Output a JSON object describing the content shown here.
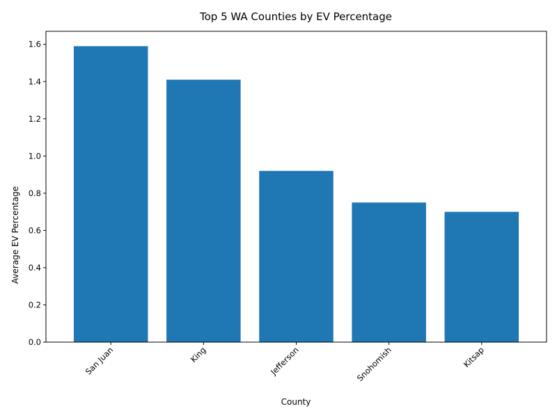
{
  "chart_data": {
    "type": "bar",
    "title": "Top 5 WA Counties by EV Percentage",
    "xlabel": "County",
    "ylabel": "Average EV Percentage",
    "categories": [
      "San Juan",
      "King",
      "Jefferson",
      "Snohomish",
      "Kitsap"
    ],
    "values": [
      1.59,
      1.41,
      0.92,
      0.75,
      0.7
    ],
    "ylim": [
      0,
      1.67
    ],
    "yticks": [
      "0.0",
      "0.2",
      "0.4",
      "0.6",
      "0.8",
      "1.0",
      "1.2",
      "1.4",
      "1.6"
    ],
    "x_tick_rotation_deg": 45,
    "bar_color": "#1f77b4",
    "grid": false,
    "legend": "none"
  }
}
